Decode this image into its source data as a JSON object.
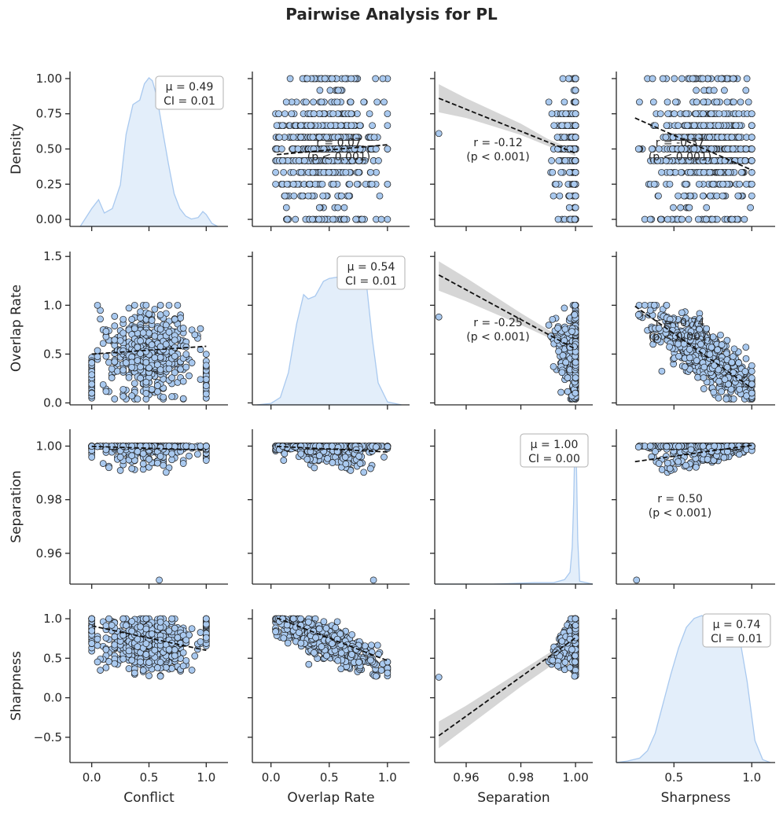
{
  "title": "Pairwise Analysis for PL",
  "colors": {
    "point": "#a9c9ef",
    "point_edge": "#1f1f1f",
    "kde_fill": "#e3eefa",
    "kde_line": "#a9c9ef",
    "fit_line": "#111111",
    "ci_band": "#c8c8c8"
  },
  "chart_data": {
    "type": "pairplot",
    "title": "Pairwise Analysis for PL",
    "variables": [
      "Density",
      "Overlap Rate",
      "Separation",
      "Sharpness"
    ],
    "axes": {
      "Density": {
        "label": "Density",
        "lim": [
          -0.05,
          1.05
        ],
        "ticks": [
          0.0,
          0.25,
          0.5,
          0.75,
          1.0
        ],
        "tick_labels": [
          "0.00",
          "0.25",
          "0.50",
          "0.75",
          "1.00"
        ]
      },
      "Overlap Rate": {
        "label": "Overlap Rate",
        "lim": [
          -0.02,
          1.55
        ],
        "ticks": [
          0.0,
          0.5,
          1.0,
          1.5
        ],
        "tick_labels": [
          "0.0",
          "0.5",
          "1.0",
          "1.5"
        ]
      },
      "Separation": {
        "label": "Separation",
        "lim": [
          0.9485,
          1.0063
        ],
        "ticks": [
          0.96,
          0.98,
          1.0
        ],
        "tick_labels": [
          "0.96",
          "0.98",
          "1.00"
        ]
      },
      "Sharpness": {
        "label": "Sharpness",
        "lim": [
          -0.82,
          1.12
        ],
        "ticks": [
          -0.5,
          0.0,
          0.5,
          1.0
        ],
        "tick_labels": [
          "−0.5",
          "0.0",
          "0.5",
          "1.0"
        ]
      }
    },
    "x_axes": [
      {
        "label": "Conflict",
        "lim": [
          -0.19,
          1.19
        ],
        "ticks": [
          0.0,
          0.5,
          1.0
        ],
        "tick_labels": [
          "0.0",
          "0.5",
          "1.0"
        ]
      },
      {
        "label": "Overlap Rate",
        "lim": [
          -0.16,
          1.19
        ],
        "ticks": [
          0.0,
          0.5,
          1.0
        ],
        "tick_labels": [
          "0.0",
          "0.5",
          "1.0"
        ]
      },
      {
        "label": "Separation",
        "lim": [
          0.9485,
          1.0063
        ],
        "ticks": [
          0.96,
          0.98,
          1.0
        ],
        "tick_labels": [
          "0.96",
          "0.98",
          "1.00"
        ]
      },
      {
        "label": "Sharpness",
        "lim": [
          0.13,
          1.15
        ],
        "ticks": [
          0.5,
          1.0
        ],
        "tick_labels": [
          "0.5",
          "1.0"
        ]
      }
    ],
    "diagonal": [
      {
        "variable": "Density",
        "mean_label": "μ = 0.49",
        "ci_label": "CI = 0.01",
        "kde": {
          "x": [
            -0.1,
            0.0,
            0.06,
            0.11,
            0.18,
            0.25,
            0.3,
            0.36,
            0.42,
            0.46,
            0.5,
            0.53,
            0.57,
            0.62,
            0.67,
            0.72,
            0.77,
            0.82,
            0.87,
            0.93,
            0.97,
            1.0,
            1.05,
            1.1
          ],
          "y": [
            0.0,
            0.12,
            0.18,
            0.09,
            0.12,
            0.28,
            0.62,
            0.82,
            0.85,
            0.96,
            1.0,
            0.98,
            0.87,
            0.64,
            0.42,
            0.22,
            0.12,
            0.07,
            0.05,
            0.06,
            0.1,
            0.08,
            0.02,
            0.0
          ]
        }
      },
      {
        "variable": "Overlap Rate",
        "mean_label": "μ = 0.54",
        "ci_label": "CI = 0.01",
        "kde": {
          "x": [
            -0.12,
            0.0,
            0.08,
            0.15,
            0.22,
            0.28,
            0.32,
            0.38,
            0.45,
            0.5,
            0.58,
            0.65,
            0.72,
            0.78,
            0.82,
            0.87,
            0.92,
            1.0,
            1.12
          ],
          "y": [
            0.0,
            0.01,
            0.05,
            0.22,
            0.55,
            0.75,
            0.72,
            0.74,
            0.84,
            0.86,
            0.87,
            0.95,
            0.98,
            1.0,
            0.82,
            0.45,
            0.15,
            0.02,
            0.0
          ]
        }
      },
      {
        "variable": "Separation",
        "mean_label": "μ = 1.00",
        "ci_label": "CI = 0.00",
        "kde": {
          "x": [
            0.9485,
            0.97,
            0.985,
            0.992,
            0.996,
            0.998,
            0.9988,
            0.9993,
            0.9997,
            1.0,
            1.0003,
            1.0008,
            1.0015,
            1.0063
          ],
          "y": [
            0.0,
            0.0,
            0.01,
            0.01,
            0.03,
            0.08,
            0.25,
            0.55,
            0.9,
            1.0,
            0.85,
            0.3,
            0.02,
            0.0
          ]
        }
      },
      {
        "variable": "Sharpness",
        "mean_label": "μ = 0.74",
        "ci_label": "CI = 0.01",
        "kde": {
          "x": [
            0.13,
            0.2,
            0.28,
            0.33,
            0.38,
            0.43,
            0.48,
            0.53,
            0.58,
            0.63,
            0.68,
            0.73,
            0.78,
            0.83,
            0.88,
            0.93,
            0.97,
            1.02,
            1.07,
            1.12
          ],
          "y": [
            0.0,
            0.01,
            0.03,
            0.08,
            0.2,
            0.4,
            0.6,
            0.78,
            0.92,
            0.98,
            1.0,
            0.95,
            0.96,
            0.93,
            0.9,
            0.8,
            0.55,
            0.15,
            0.02,
            0.0
          ]
        }
      }
    ],
    "regressions": [
      {
        "row": 0,
        "col": 1,
        "r_label": "r = 0.07",
        "p_label": "(p < 0.001)",
        "r": 0.07,
        "line": {
          "x": [
            0.05,
            1.0
          ],
          "y": [
            0.46,
            0.53
          ]
        },
        "ci": null
      },
      {
        "row": 0,
        "col": 2,
        "r_label": "r = -0.12",
        "p_label": "(p < 0.001)",
        "r": -0.12,
        "line": {
          "x": [
            0.95,
            1.0
          ],
          "y": [
            0.86,
            0.47
          ]
        },
        "ci": {
          "x": [
            0.95,
            0.96,
            0.97,
            0.98,
            0.99,
            1.0
          ],
          "lower": [
            0.76,
            0.72,
            0.66,
            0.6,
            0.52,
            0.45
          ],
          "upper": [
            0.96,
            0.86,
            0.77,
            0.68,
            0.57,
            0.49
          ]
        }
      },
      {
        "row": 0,
        "col": 3,
        "r_label": "r = -0.37",
        "p_label": "(p < 0.001)",
        "r": -0.37,
        "line": {
          "x": [
            0.25,
            1.0
          ],
          "y": [
            0.72,
            0.35
          ]
        },
        "ci": null
      },
      {
        "row": 1,
        "col": 0,
        "r_label": "",
        "p_label": "",
        "r": 0.05,
        "line": {
          "x": [
            0.0,
            1.0
          ],
          "y": [
            0.5,
            0.58
          ]
        },
        "ci": null
      },
      {
        "row": 1,
        "col": 2,
        "r_label": "r = -0.25",
        "p_label": "(p < 0.001)",
        "r": -0.25,
        "line": {
          "x": [
            0.95,
            1.0
          ],
          "y": [
            1.31,
            0.55
          ]
        },
        "ci": {
          "x": [
            0.95,
            0.96,
            0.97,
            0.98,
            0.99,
            1.0
          ],
          "lower": [
            1.15,
            1.04,
            0.92,
            0.8,
            0.67,
            0.53
          ],
          "upper": [
            1.45,
            1.28,
            1.1,
            0.92,
            0.75,
            0.58
          ]
        }
      },
      {
        "row": 1,
        "col": 3,
        "r_label": "r = -0.74",
        "p_label": "(p < 0.001)",
        "r": -0.74,
        "line": {
          "x": [
            0.25,
            1.0
          ],
          "y": [
            0.99,
            0.15
          ]
        },
        "ci": null
      },
      {
        "row": 2,
        "col": 0,
        "r_label": "",
        "p_label": "",
        "r": -0.1,
        "line": {
          "x": [
            0.0,
            1.0
          ],
          "y": [
            0.9999,
            0.9985
          ]
        },
        "ci": null
      },
      {
        "row": 2,
        "col": 1,
        "r_label": "",
        "p_label": "",
        "r": -0.12,
        "line": {
          "x": [
            0.05,
            1.0
          ],
          "y": [
            0.9999,
            0.9978
          ]
        },
        "ci": null
      },
      {
        "row": 2,
        "col": 3,
        "r_label": "r = 0.50",
        "p_label": "(p < 0.001)",
        "r": 0.5,
        "line": {
          "x": [
            0.25,
            1.0
          ],
          "y": [
            0.9942,
            1.0003
          ]
        },
        "ci": null
      },
      {
        "row": 3,
        "col": 0,
        "r_label": "",
        "p_label": "",
        "r": -0.37,
        "line": {
          "x": [
            0.0,
            1.0
          ],
          "y": [
            0.91,
            0.6
          ]
        },
        "ci": null
      },
      {
        "row": 3,
        "col": 1,
        "r_label": "",
        "p_label": "",
        "r": -0.74,
        "line": {
          "x": [
            0.05,
            1.0
          ],
          "y": [
            1.01,
            0.47
          ]
        },
        "ci": null
      },
      {
        "row": 3,
        "col": 2,
        "r_label": "",
        "p_label": "",
        "r": 0.5,
        "line": {
          "x": [
            0.95,
            1.0
          ],
          "y": [
            -0.48,
            0.76
          ]
        },
        "ci": {
          "x": [
            0.95,
            0.96,
            0.97,
            0.98,
            0.99,
            1.0
          ],
          "lower": [
            -0.64,
            -0.38,
            -0.12,
            0.14,
            0.38,
            0.72
          ],
          "upper": [
            -0.3,
            -0.1,
            0.12,
            0.34,
            0.56,
            0.8
          ]
        }
      }
    ],
    "outliers": [
      {
        "row": 0,
        "col": 2,
        "x": 0.95,
        "y": 0.61
      },
      {
        "row": 1,
        "col": 2,
        "x": 0.95,
        "y": 0.88
      },
      {
        "row": 2,
        "col": 0,
        "x": 0.59,
        "y": 0.95
      },
      {
        "row": 2,
        "col": 1,
        "x": 0.88,
        "y": 0.95
      },
      {
        "row": 2,
        "col": 3,
        "x": 0.26,
        "y": 0.95
      },
      {
        "row": 3,
        "col": 2,
        "x": 0.95,
        "y": 0.26
      }
    ]
  }
}
